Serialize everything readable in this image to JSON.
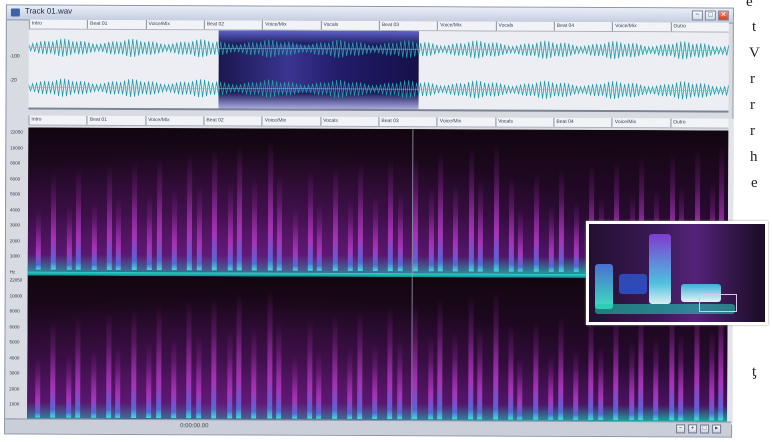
{
  "window": {
    "title": "Track 01.wav",
    "controls": [
      "−",
      "□",
      "✕"
    ]
  },
  "markers": {
    "labels": [
      "Intro",
      "Beat 01",
      "Voice/Mix",
      "Beat 02",
      "Voice/Mix",
      "Vocals",
      "Beat 03",
      "Voice/Mix",
      "Vocals",
      "Beat 04",
      "Voice/Mix",
      "Outro"
    ]
  },
  "overview": {
    "db_top": "-100",
    "db_bottom": "-20"
  },
  "frequency_scale": {
    "labels": [
      "22050",
      "10000",
      "8000",
      "6000",
      "5000",
      "4000",
      "3000",
      "2000",
      "1000",
      "Hz",
      "22050",
      "10000",
      "8000",
      "6000",
      "5000",
      "4000",
      "3000",
      "2000",
      "1000",
      "Hz"
    ]
  },
  "statusbar": {
    "time": "0:00:00.00"
  },
  "page_text": {
    "letters": [
      "e",
      "t",
      "V",
      "r",
      "r",
      "r",
      "h",
      "e",
      "ƫ"
    ]
  },
  "colors": {
    "spectrogram_low": "#1d9e9e",
    "spectrogram_mid": "#a634b8",
    "selection": "#2a2680",
    "waveform": "#2a9aa6"
  }
}
